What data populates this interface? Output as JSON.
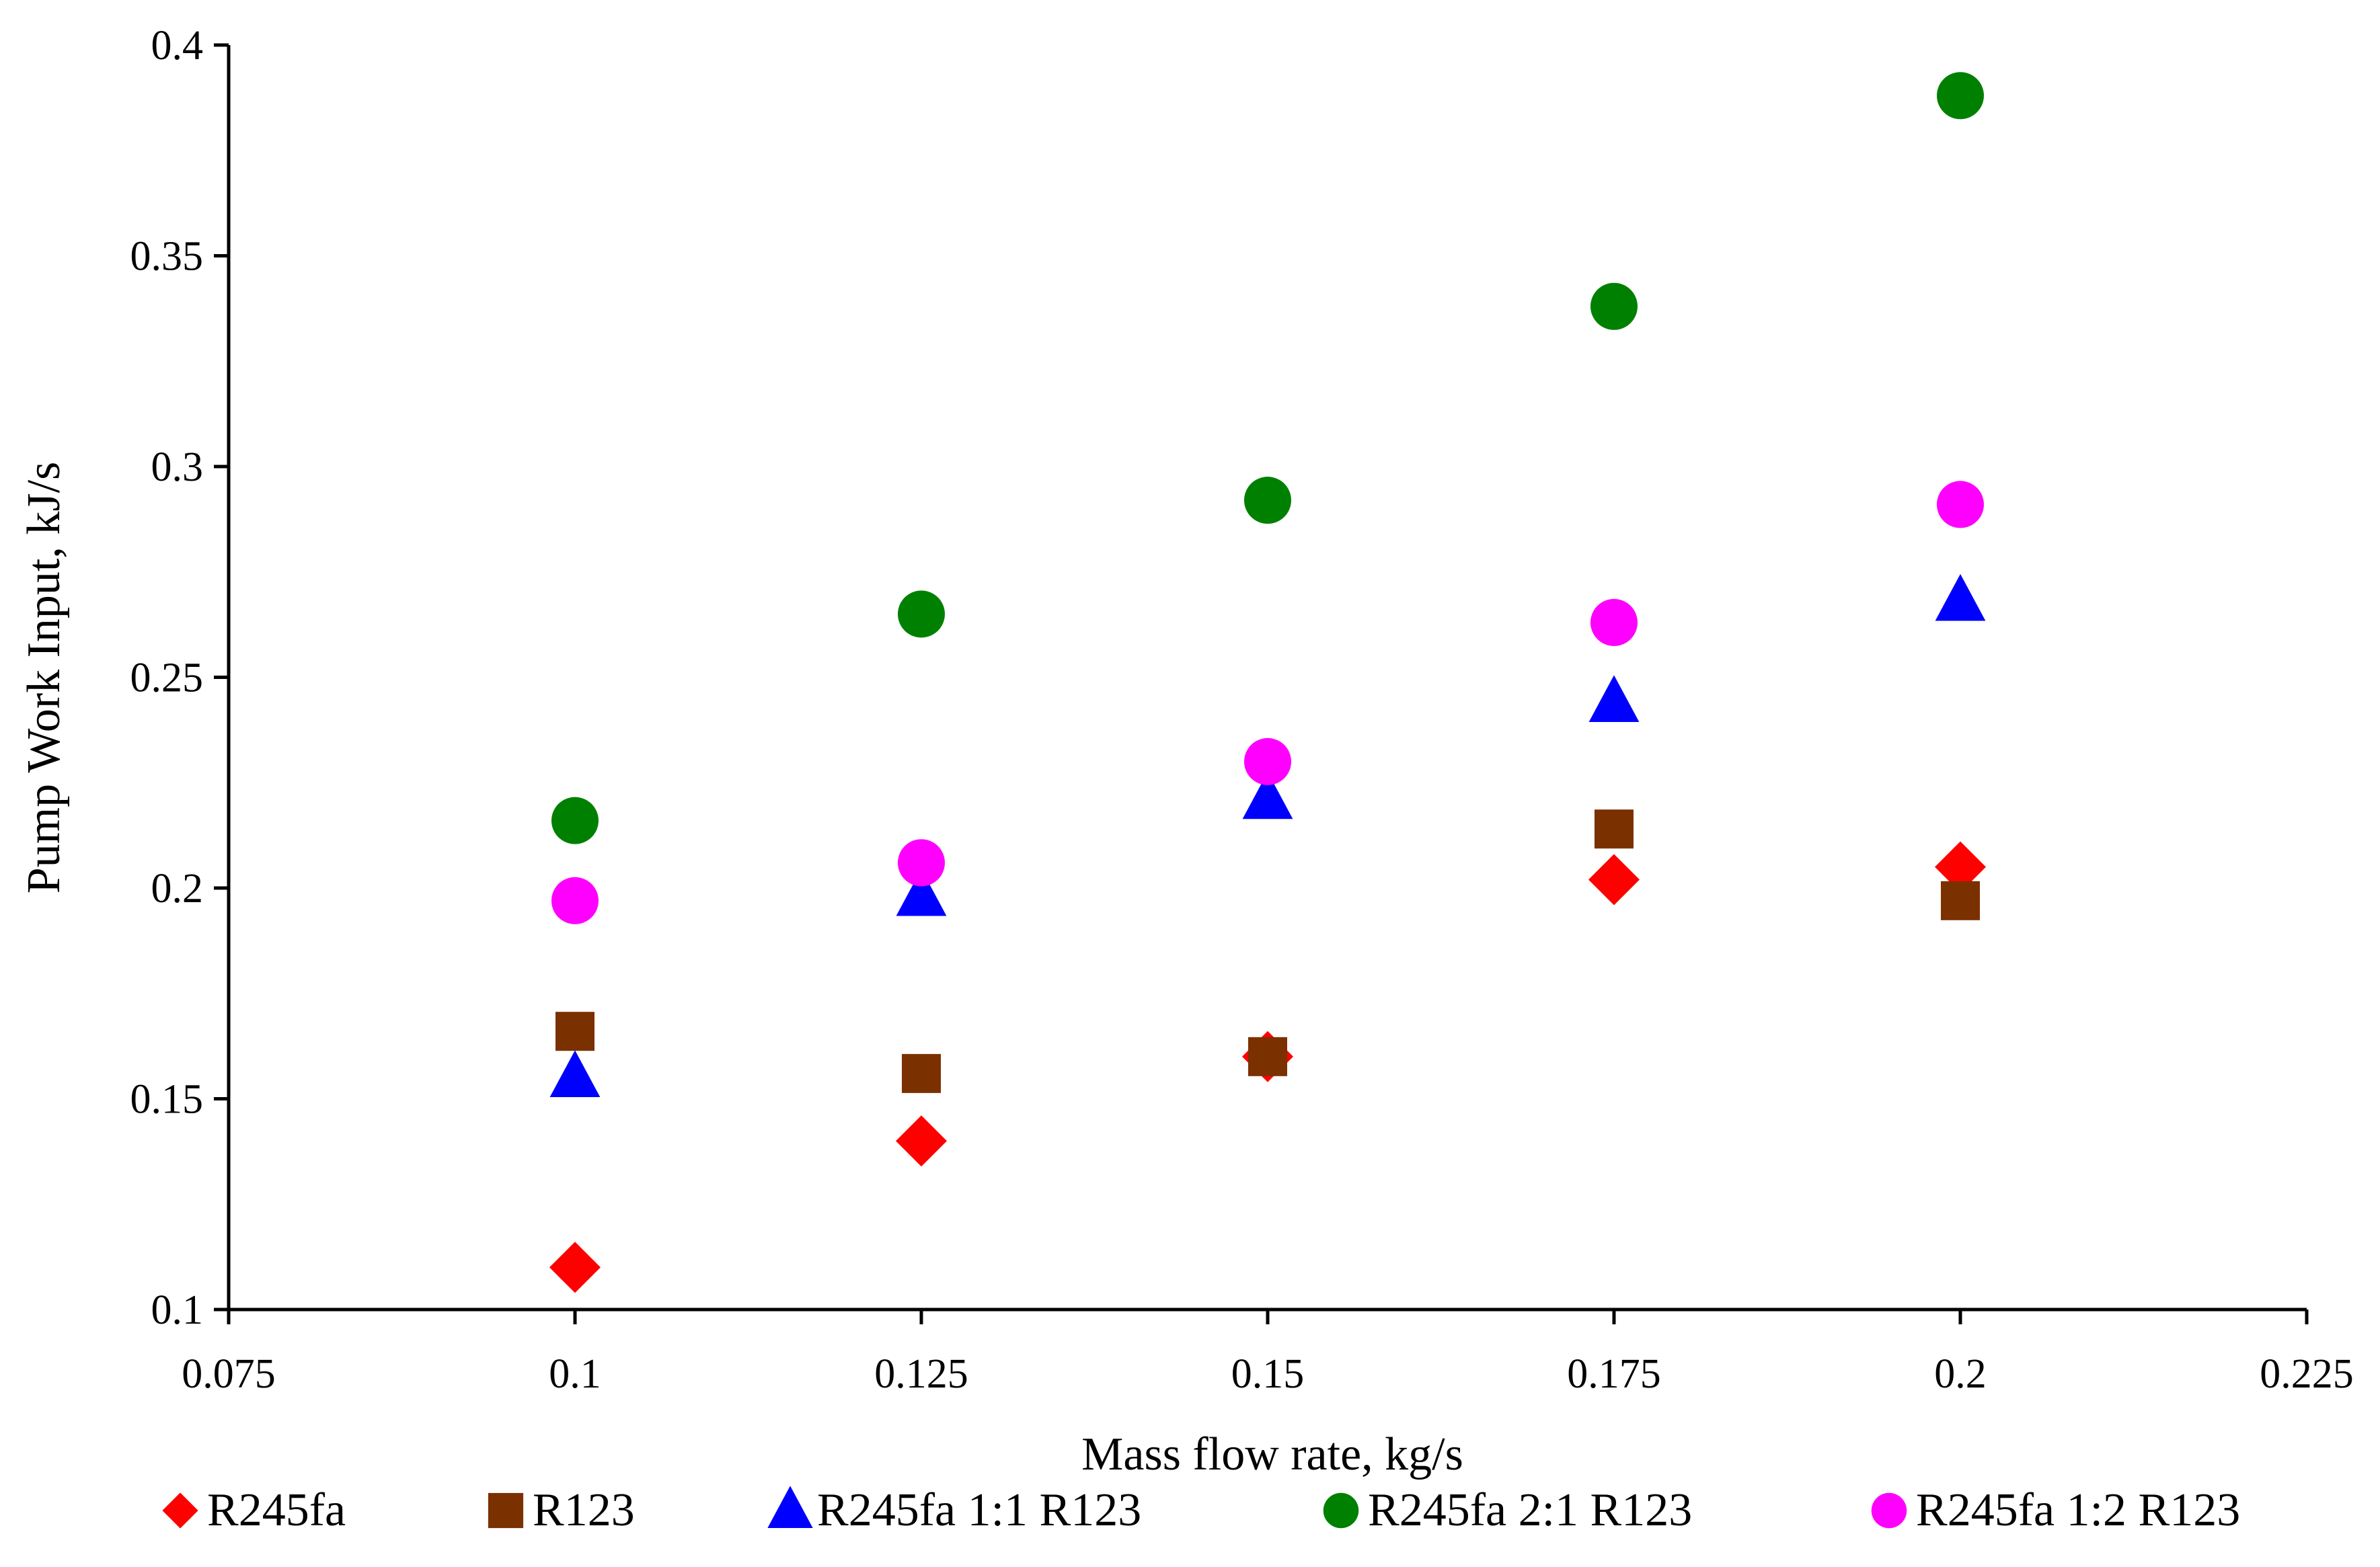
{
  "chart_data": {
    "type": "scatter",
    "title": "",
    "xlabel": "Mass flow rate, kg/s",
    "ylabel": "Pump Work Input, kJ/s",
    "xlim": [
      0.075,
      0.225
    ],
    "ylim": [
      0.1,
      0.4
    ],
    "x_ticks": [
      "0.075",
      "0.1",
      "0.125",
      "0.15",
      "0.175",
      "0.2",
      "0.225"
    ],
    "y_ticks": [
      "0.1",
      "0.15",
      "0.2",
      "0.25",
      "0.3",
      "0.35",
      "0.4"
    ],
    "grid": false,
    "legend_position": "bottom",
    "x": [
      0.1,
      0.125,
      0.15,
      0.175,
      0.2
    ],
    "series": [
      {
        "name": "R245fa",
        "marker": "diamond",
        "color": "#ff0000",
        "values": [
          0.11,
          0.14,
          0.16,
          0.202,
          0.205
        ]
      },
      {
        "name": "R123",
        "marker": "square",
        "color": "#7b3000",
        "values": [
          0.166,
          0.156,
          0.16,
          0.214,
          0.197
        ]
      },
      {
        "name": "R245fa 1:1 R123",
        "marker": "triangle",
        "color": "#0000ff",
        "values": [
          0.155,
          0.198,
          0.221,
          0.244,
          0.268
        ]
      },
      {
        "name": "R245fa 2:1 R123",
        "marker": "circle",
        "color": "#008000",
        "values": [
          0.216,
          0.265,
          0.292,
          0.338,
          0.388
        ]
      },
      {
        "name": "R245fa 1:2 R123",
        "marker": "circle",
        "color": "#ff00ff",
        "values": [
          0.197,
          0.206,
          0.23,
          0.263,
          0.291
        ]
      }
    ]
  }
}
